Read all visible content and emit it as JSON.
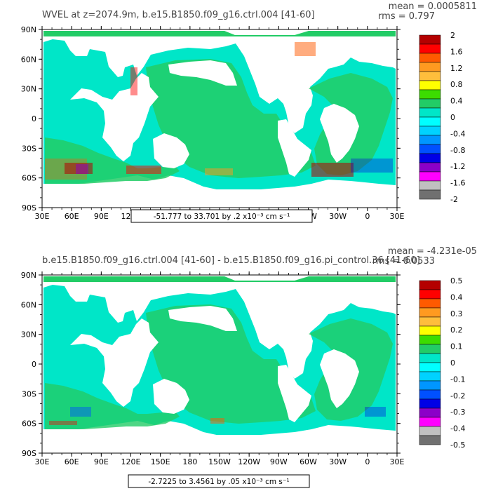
{
  "panels": [
    {
      "title": "WVEL at z=2074.9m, b.e15.B1850.f09_g16.ctrl.004 [41-60]",
      "stat_mean": "mean = 0.0005811",
      "stat_rms": "rms = 0.797",
      "range_label": "-51.777 to 33.701 by .2 x10⁻³ cm s⁻¹",
      "colorbar_labels": [
        "2",
        "1.6",
        "1.2",
        "0.8",
        "0.4",
        "0",
        "-0.4",
        "-0.8",
        "-1.2",
        "-1.6",
        "-2"
      ]
    },
    {
      "title": "b.e15.B1850.f09_g16.ctrl.004 [41-60] - b.e15.B1850.f09_g16.pi_control.36 [41-60]",
      "stat_mean": "mean = -4.231e-05",
      "stat_rms": "rms = 0.0533",
      "range_label": "-2.7225 to 3.4561 by .05 x10⁻³ cm s⁻¹",
      "colorbar_labels": [
        "0.5",
        "0.4",
        "0.3",
        "0.2",
        "0.1",
        "0",
        "-0.1",
        "-0.2",
        "-0.3",
        "-0.4",
        "-0.5"
      ]
    }
  ],
  "lat_labels": [
    "90N",
    "60N",
    "30N",
    "0",
    "30S",
    "60S",
    "90S"
  ],
  "lon_labels": [
    "30E",
    "60E",
    "90E",
    "120E",
    "150E",
    "180",
    "150W",
    "120W",
    "90W",
    "60W",
    "30W",
    "0",
    "30E"
  ],
  "colors": {
    "scale": [
      "#b40000",
      "#ff0000",
      "#ff5a00",
      "#ff9a20",
      "#ffbe3c",
      "#ffff00",
      "#3cdc00",
      "#22cc66",
      "#00e6c8",
      "#00ffff",
      "#00d2ff",
      "#0096ff",
      "#0050ff",
      "#0000e6",
      "#8c00c8",
      "#ff00ff",
      "#c0c0c0",
      "#707070"
    ],
    "ocean_main": "#22cc66",
    "ocean_alt": "#00e6c8"
  }
}
